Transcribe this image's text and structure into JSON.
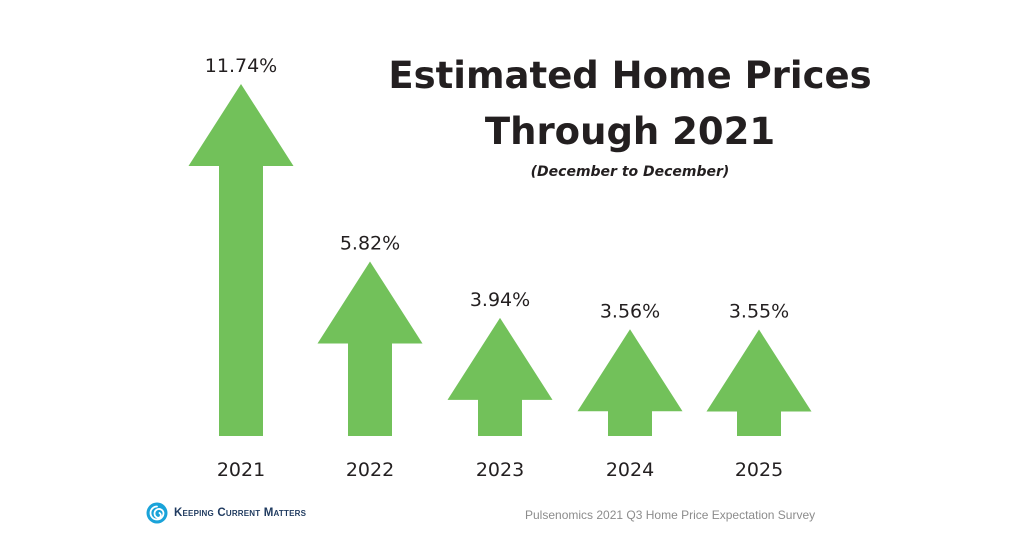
{
  "chart_data": {
    "type": "bar",
    "title_line1": "Estimated Home Prices",
    "title_line2": "Through 2021",
    "subtitle": "(December to December)",
    "categories": [
      "2021",
      "2022",
      "2023",
      "2024",
      "2025"
    ],
    "values": [
      11.74,
      5.82,
      3.94,
      3.56,
      3.55
    ],
    "value_labels": [
      "11.74%",
      "5.82%",
      "3.94%",
      "3.56%",
      "3.55%"
    ],
    "xlabel": "",
    "ylabel": "",
    "ylim": [
      0,
      12
    ],
    "bar_style": "arrow",
    "bar_color": "#72c15a",
    "grid": false
  },
  "footer": {
    "logo_text": "Keeping Current Matters",
    "source": "Pulsenomics 2021 Q3 Home Price Expectation Survey"
  },
  "colors": {
    "title": "#231f20",
    "logo_text": "#1f3a5f",
    "logo_icon": "#1aa3d9",
    "source": "#8c8c8c"
  }
}
